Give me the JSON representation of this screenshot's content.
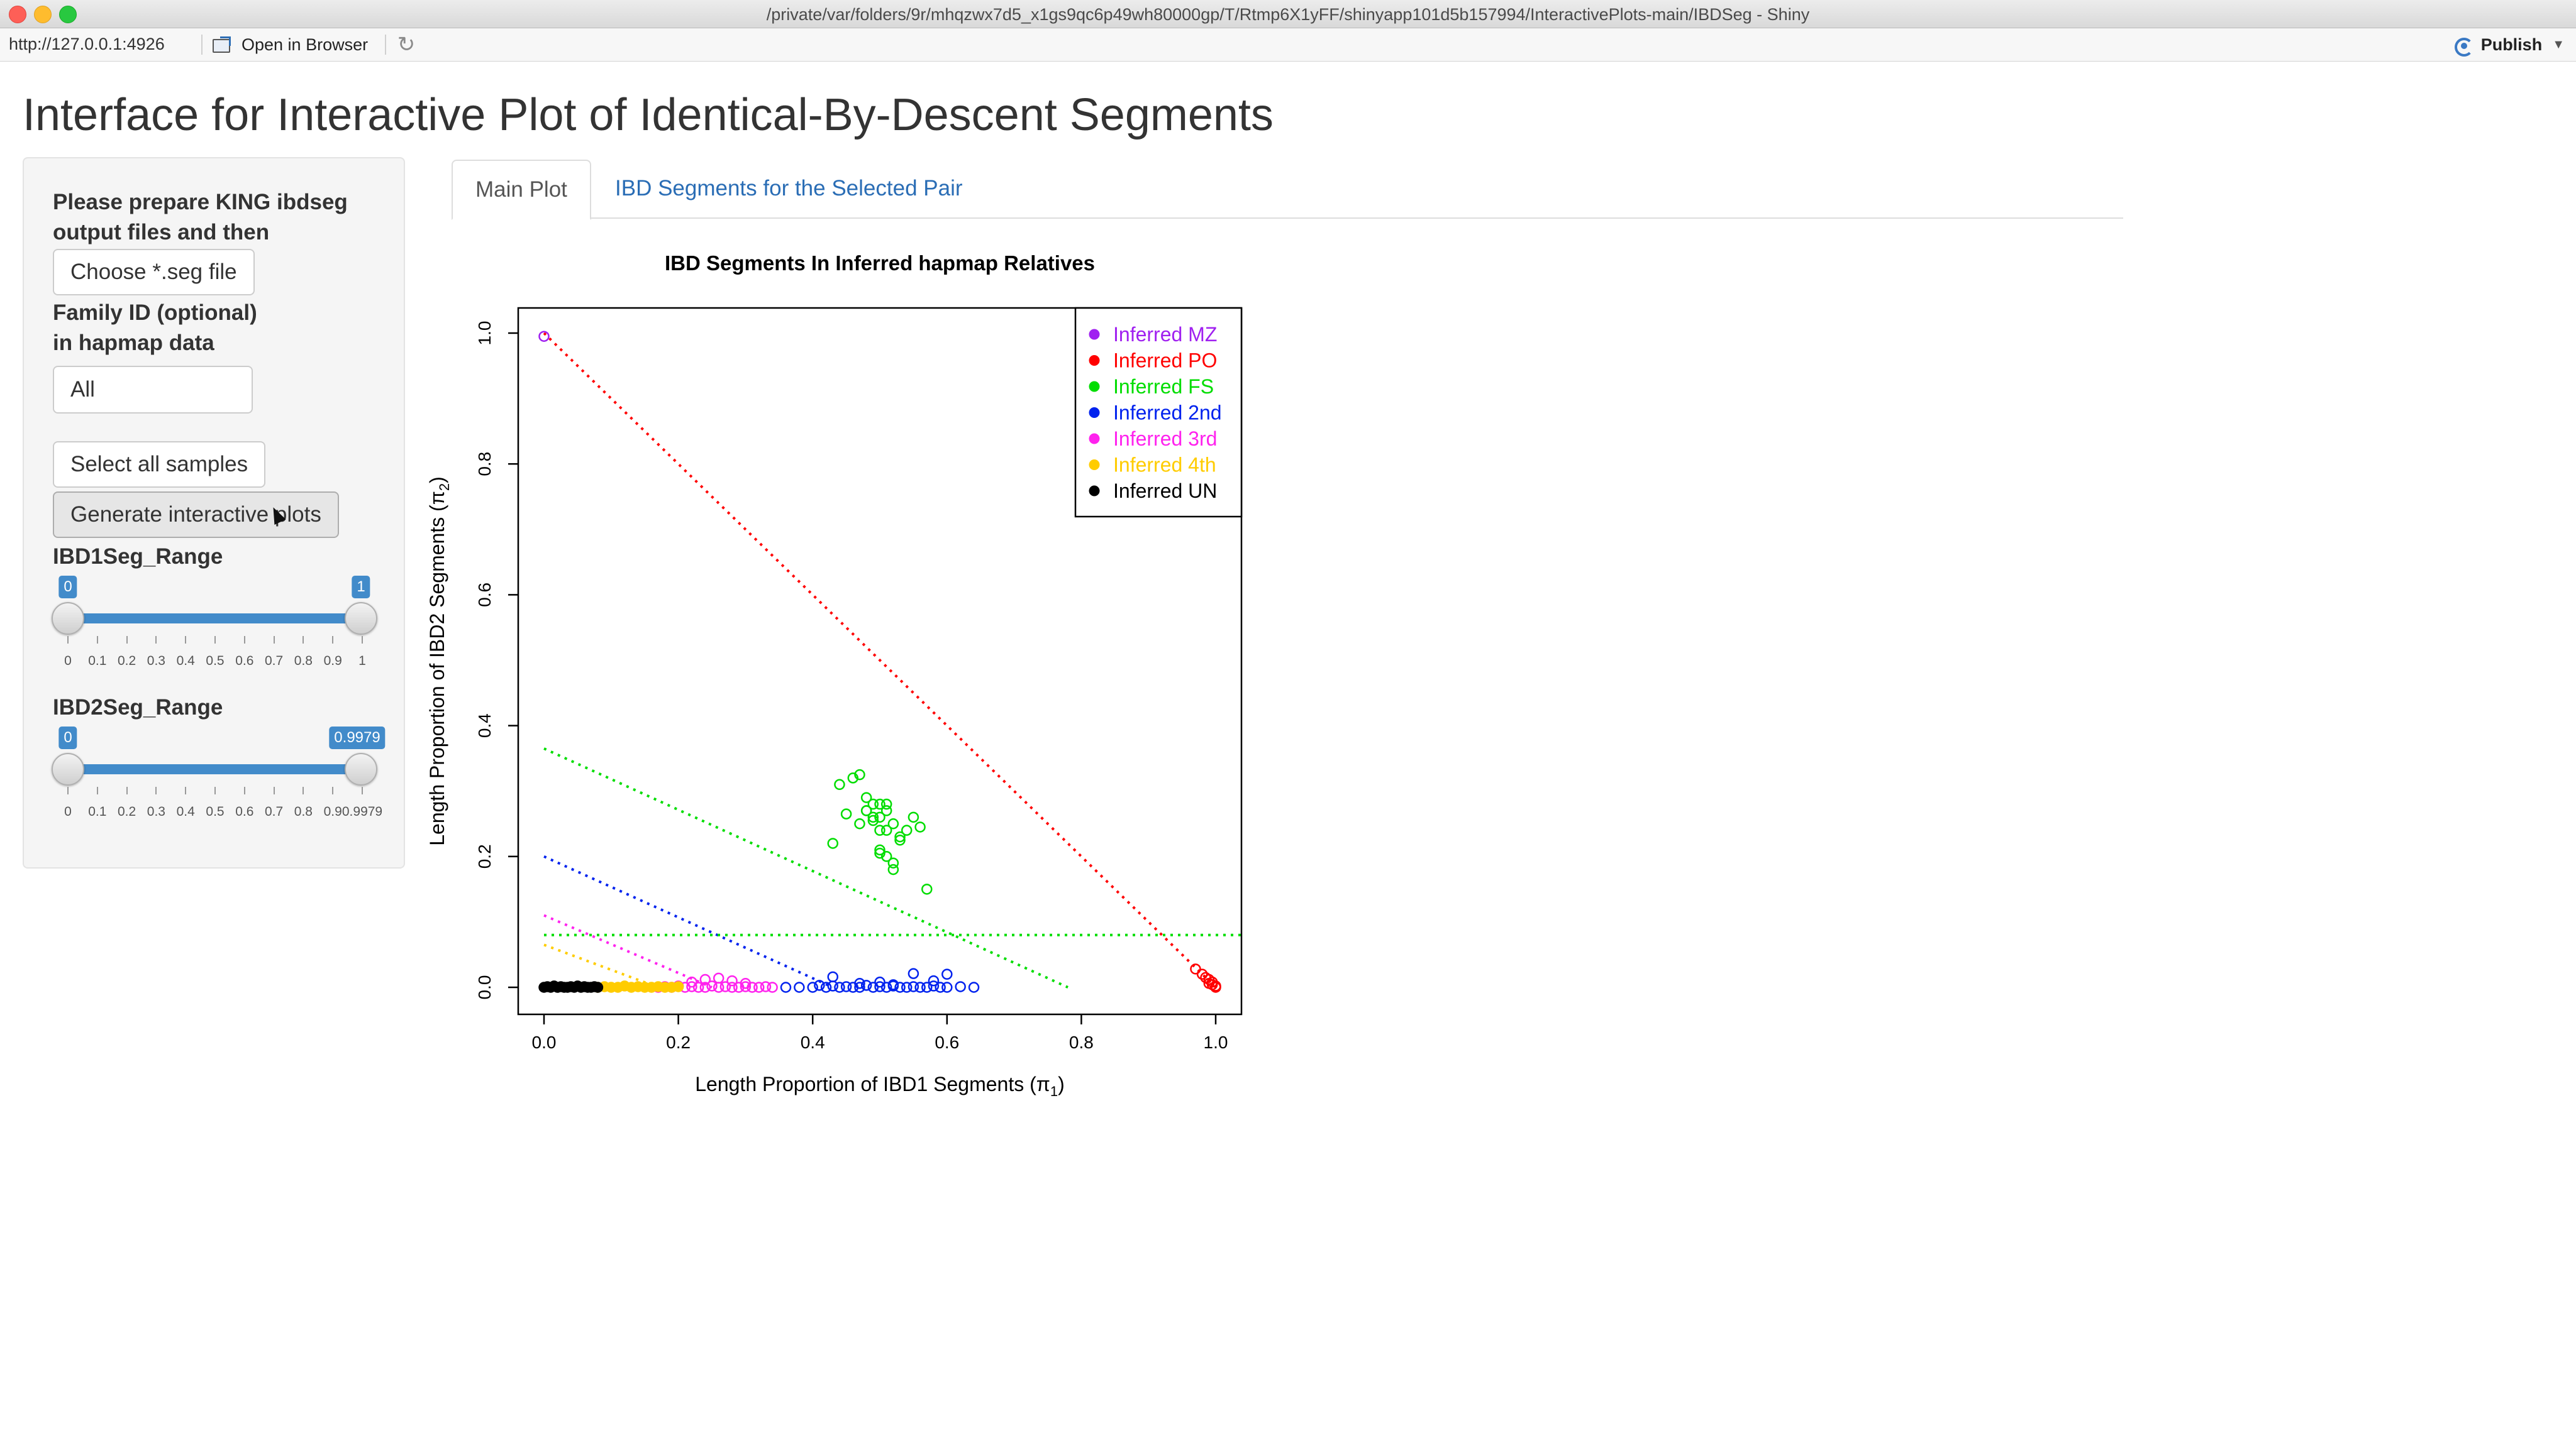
{
  "window": {
    "title": "/private/var/folders/9r/mhqzwx7d5_x1gs9qc6p49wh80000gp/T/Rtmp6X1yFF/shinyapp101d5b157994/InteractivePlots-main/IBDSeg - Shiny"
  },
  "toolbar": {
    "url": "http://127.0.0.1:4926",
    "open_in_browser": "Open in Browser",
    "publish": "Publish"
  },
  "page": {
    "title": "Interface for Interactive Plot of Identical-By-Descent Segments"
  },
  "sidebar": {
    "file_label_line1": "Please prepare KING ibdseg",
    "file_label_line2": "output files and then",
    "file_button": "Choose *.seg file",
    "family_label_line1": "Family ID (optional)",
    "family_label_line2": "in hapmap data",
    "family_value": "All",
    "select_all_button": "Select all samples",
    "generate_button": "Generate interactive plots",
    "ibd1_label": "IBD1Seg_Range",
    "ibd1_min": "0",
    "ibd1_max": "1",
    "ibd1_ticks": [
      "0",
      "0.1",
      "0.2",
      "0.3",
      "0.4",
      "0.5",
      "0.6",
      "0.7",
      "0.8",
      "0.9",
      "1"
    ],
    "ibd2_label": "IBD2Seg_Range",
    "ibd2_min": "0",
    "ibd2_max": "0.9979",
    "ibd2_ticks": [
      "0",
      "0.1",
      "0.2",
      "0.3",
      "0.4",
      "0.5",
      "0.6",
      "0.7",
      "0.8",
      "0.9",
      "0.9979"
    ]
  },
  "tabs": [
    {
      "label": "Main Plot",
      "active": true
    },
    {
      "label": "IBD Segments for the Selected Pair",
      "active": false
    }
  ],
  "chart_data": {
    "type": "scatter",
    "title": "IBD Segments In Inferred hapmap Relatives",
    "xlabel": "Length Proportion of IBD1 Segments (π",
    "xlabel_sub": "1",
    "ylabel": "Length Proportion of IBD2 Segments (π",
    "ylabel_sub": "2",
    "xlim": [
      0,
      1
    ],
    "ylim": [
      0,
      1
    ],
    "x_ticks": [
      "0.0",
      "0.2",
      "0.4",
      "0.6",
      "0.8",
      "1.0"
    ],
    "y_ticks": [
      "0.0",
      "0.2",
      "0.4",
      "0.6",
      "0.8",
      "1.0"
    ],
    "legend_position": "top-right",
    "legend": [
      {
        "name": "Inferred MZ",
        "color": "#a020f0"
      },
      {
        "name": "Inferred PO",
        "color": "#ff0000"
      },
      {
        "name": "Inferred FS",
        "color": "#00dd00"
      },
      {
        "name": "Inferred 2nd",
        "color": "#0022ee"
      },
      {
        "name": "Inferred 3rd",
        "color": "#ff22ee"
      },
      {
        "name": "Inferred 4th",
        "color": "#ffcc00"
      },
      {
        "name": "Inferred UN",
        "color": "#000000"
      }
    ],
    "reference_lines": [
      {
        "color": "#ff0000",
        "from": [
          0,
          1
        ],
        "to": [
          1,
          0
        ]
      },
      {
        "color": "#00dd00",
        "from": [
          0,
          0.365
        ],
        "to": [
          0.78,
          0
        ]
      },
      {
        "color": "#0022ee",
        "from": [
          0,
          0.2
        ],
        "to": [
          0.43,
          0
        ]
      },
      {
        "color": "#ff22ee",
        "from": [
          0,
          0.11
        ],
        "to": [
          0.25,
          0
        ]
      },
      {
        "color": "#ffcc00",
        "from": [
          0,
          0.065
        ],
        "to": [
          0.17,
          0
        ]
      },
      {
        "color": "#00dd00",
        "from": [
          0,
          0.08
        ],
        "to": [
          1.05,
          0.08
        ]
      }
    ],
    "series": [
      {
        "name": "Inferred MZ",
        "color": "#a020f0",
        "x": [
          0.0
        ],
        "y": [
          0.995
        ]
      },
      {
        "name": "Inferred PO",
        "color": "#ff0000",
        "x": [
          0.97,
          0.98,
          0.985,
          0.99,
          0.99,
          0.995,
          1.0,
          1.0,
          0.995
        ],
        "y": [
          0.028,
          0.02,
          0.015,
          0.012,
          0.006,
          0.004,
          0.002,
          0.0,
          0.008
        ]
      },
      {
        "name": "Inferred FS",
        "color": "#00dd00",
        "x": [
          0.44,
          0.46,
          0.47,
          0.48,
          0.49,
          0.5,
          0.51,
          0.52,
          0.5,
          0.49,
          0.48,
          0.51,
          0.53,
          0.54,
          0.5,
          0.47,
          0.45,
          0.52,
          0.55,
          0.56,
          0.5,
          0.51,
          0.48,
          0.53,
          0.57,
          0.43,
          0.52,
          0.49,
          0.5,
          0.51
        ],
        "y": [
          0.31,
          0.32,
          0.325,
          0.27,
          0.28,
          0.26,
          0.27,
          0.25,
          0.24,
          0.26,
          0.27,
          0.28,
          0.23,
          0.24,
          0.21,
          0.25,
          0.265,
          0.19,
          0.26,
          0.245,
          0.28,
          0.2,
          0.29,
          0.225,
          0.15,
          0.22,
          0.18,
          0.255,
          0.205,
          0.24
        ]
      },
      {
        "name": "Inferred 2nd",
        "color": "#0022ee",
        "x": [
          0.36,
          0.38,
          0.4,
          0.42,
          0.43,
          0.44,
          0.45,
          0.46,
          0.47,
          0.48,
          0.49,
          0.5,
          0.51,
          0.52,
          0.53,
          0.54,
          0.55,
          0.56,
          0.57,
          0.58,
          0.59,
          0.6,
          0.62,
          0.64,
          0.43,
          0.55,
          0.6,
          0.47,
          0.52,
          0.5,
          0.41,
          0.58
        ],
        "y": [
          0.0,
          0.0,
          0.0,
          0.0,
          0.002,
          0.0,
          0.001,
          0.0,
          0.0,
          0.003,
          0.0,
          0.001,
          0.0,
          0.002,
          0.0,
          0.0,
          0.001,
          0.0,
          0.0,
          0.002,
          0.0,
          0.0,
          0.001,
          0.0,
          0.016,
          0.021,
          0.02,
          0.006,
          0.004,
          0.008,
          0.003,
          0.01
        ]
      },
      {
        "name": "Inferred 3rd",
        "color": "#ff22ee",
        "x": [
          0.17,
          0.18,
          0.19,
          0.2,
          0.21,
          0.22,
          0.23,
          0.24,
          0.25,
          0.26,
          0.27,
          0.28,
          0.29,
          0.3,
          0.31,
          0.32,
          0.33,
          0.34,
          0.24,
          0.26,
          0.28,
          0.22,
          0.3
        ],
        "y": [
          0.0,
          0.001,
          0.0,
          0.002,
          0.0,
          0.001,
          0.0,
          0.0,
          0.002,
          0.0,
          0.001,
          0.0,
          0.0,
          0.001,
          0.0,
          0.0,
          0.001,
          0.0,
          0.012,
          0.014,
          0.01,
          0.008,
          0.006
        ]
      },
      {
        "name": "Inferred 4th",
        "color": "#ffcc00",
        "x": [
          0.08,
          0.09,
          0.1,
          0.11,
          0.12,
          0.13,
          0.14,
          0.15,
          0.16,
          0.17,
          0.18,
          0.19,
          0.2
        ],
        "y": [
          0.0,
          0.001,
          0.0,
          0.0,
          0.002,
          0.0,
          0.001,
          0.0,
          0.0,
          0.001,
          0.0,
          0.0,
          0.001
        ]
      },
      {
        "name": "Inferred UN",
        "color": "#000000",
        "x": [
          0.0,
          0.005,
          0.01,
          0.015,
          0.02,
          0.025,
          0.03,
          0.035,
          0.04,
          0.045,
          0.05,
          0.055,
          0.06,
          0.065,
          0.07,
          0.075,
          0.08
        ],
        "y": [
          0.0,
          0.001,
          0.0,
          0.002,
          0.0,
          0.001,
          0.0,
          0.0,
          0.001,
          0.0,
          0.002,
          0.0,
          0.001,
          0.0,
          0.0,
          0.001,
          0.0
        ]
      }
    ]
  }
}
